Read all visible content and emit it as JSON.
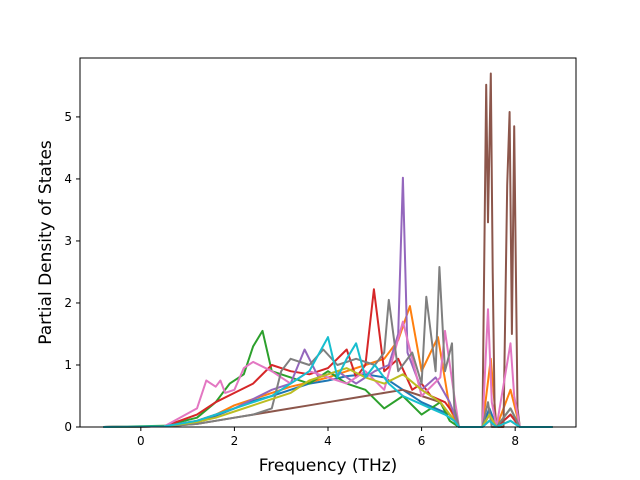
{
  "chart_data": {
    "type": "line",
    "xlabel": "Frequency (THz)",
    "ylabel": "Partial Density of States",
    "xlim": [
      -1.3,
      9.3
    ],
    "ylim": [
      0,
      5.95
    ],
    "xticks": [
      0,
      2,
      4,
      6,
      8
    ],
    "yticks": [
      0,
      1,
      2,
      3,
      4,
      5
    ],
    "grid": false,
    "series": [
      {
        "color": "#1f77b4",
        "x": [
          -0.8,
          0.5,
          1.2,
          1.6,
          2.0,
          2.4,
          2.8,
          3.2,
          3.6,
          4.0,
          4.4,
          4.8,
          5.2,
          5.6,
          6.0,
          6.3,
          6.6,
          6.8,
          7.3,
          7.45,
          7.6,
          7.9,
          8.1,
          8.8
        ],
        "y": [
          0,
          0.01,
          0.08,
          0.18,
          0.3,
          0.42,
          0.5,
          0.6,
          0.7,
          0.75,
          0.82,
          0.85,
          0.8,
          0.6,
          0.4,
          0.3,
          0.2,
          0,
          0,
          0.3,
          0,
          0.2,
          0,
          0
        ]
      },
      {
        "color": "#ff7f0e",
        "x": [
          -0.8,
          0.5,
          1.2,
          1.6,
          2.0,
          2.4,
          2.8,
          3.2,
          3.6,
          4.0,
          4.4,
          4.8,
          5.2,
          5.5,
          5.75,
          6.0,
          6.35,
          6.6,
          6.8,
          7.3,
          7.48,
          7.6,
          7.9,
          8.1,
          8.8
        ],
        "y": [
          0,
          0.01,
          0.1,
          0.2,
          0.35,
          0.45,
          0.55,
          0.65,
          0.72,
          0.8,
          0.9,
          1.0,
          1.1,
          1.4,
          1.95,
          0.9,
          1.45,
          0.3,
          0,
          0,
          1.1,
          0,
          0.6,
          0,
          0
        ]
      },
      {
        "color": "#2ca02c",
        "x": [
          -0.8,
          0.5,
          1.2,
          1.6,
          1.9,
          2.2,
          2.4,
          2.6,
          2.8,
          3.2,
          3.6,
          4.0,
          4.4,
          4.8,
          5.2,
          5.6,
          6.0,
          6.4,
          6.6,
          6.8,
          7.3,
          7.45,
          7.6,
          7.9,
          8.1,
          8.8
        ],
        "y": [
          0,
          0.02,
          0.15,
          0.4,
          0.7,
          0.85,
          1.3,
          1.55,
          0.9,
          0.8,
          0.7,
          0.9,
          0.7,
          0.6,
          0.3,
          0.5,
          0.2,
          0.4,
          0.1,
          0,
          0,
          0.2,
          0,
          0.3,
          0,
          0
        ]
      },
      {
        "color": "#d62728",
        "x": [
          -0.8,
          0.5,
          1.2,
          1.6,
          2.0,
          2.4,
          2.8,
          3.2,
          3.6,
          4.0,
          4.4,
          4.6,
          4.8,
          4.98,
          5.2,
          5.5,
          5.8,
          6.0,
          6.2,
          6.5,
          6.7,
          6.8,
          7.3,
          7.45,
          7.6,
          7.9,
          8.1,
          8.8
        ],
        "y": [
          0,
          0.01,
          0.2,
          0.4,
          0.55,
          0.7,
          1.0,
          0.9,
          0.85,
          0.95,
          1.25,
          0.8,
          1.0,
          2.22,
          0.9,
          1.1,
          0.6,
          0.7,
          0.5,
          0.4,
          0.2,
          0,
          0,
          0.1,
          0,
          0.2,
          0,
          0
        ]
      },
      {
        "color": "#9467bd",
        "x": [
          -0.8,
          0.5,
          1.2,
          1.6,
          2.0,
          2.4,
          2.8,
          3.2,
          3.5,
          3.8,
          4.2,
          4.6,
          5.0,
          5.3,
          5.5,
          5.6,
          5.7,
          6.0,
          6.3,
          6.6,
          6.8,
          7.3,
          7.45,
          7.6,
          7.9,
          8.1,
          8.8
        ],
        "y": [
          0,
          0.01,
          0.1,
          0.2,
          0.3,
          0.45,
          0.6,
          0.7,
          1.25,
          0.8,
          0.9,
          0.7,
          0.9,
          1.0,
          1.5,
          4.02,
          1.2,
          0.6,
          0.8,
          0.4,
          0,
          0,
          0.2,
          0,
          0.1,
          0,
          0
        ]
      },
      {
        "color": "#8c564b",
        "x": [
          -0.8,
          0.5,
          1.2,
          1.6,
          2.0,
          2.4,
          2.8,
          3.2,
          3.6,
          4.0,
          4.4,
          4.8,
          5.2,
          5.6,
          6.0,
          6.4,
          6.6,
          6.8,
          7.3,
          7.38,
          7.42,
          7.48,
          7.52,
          7.56,
          7.6,
          7.75,
          7.83,
          7.88,
          7.93,
          7.98,
          8.05,
          8.1,
          8.8
        ],
        "y": [
          0,
          0.01,
          0.05,
          0.1,
          0.15,
          0.2,
          0.25,
          0.3,
          0.35,
          0.4,
          0.45,
          0.5,
          0.55,
          0.6,
          0.5,
          0.4,
          0.2,
          0,
          0,
          5.52,
          3.3,
          5.7,
          2.5,
          0.3,
          0,
          0,
          3.9,
          5.08,
          1.5,
          4.85,
          0.3,
          0,
          0
        ]
      },
      {
        "color": "#e377c2",
        "x": [
          -0.8,
          0.5,
          1.2,
          1.4,
          1.6,
          1.7,
          1.8,
          2.0,
          2.2,
          2.4,
          2.8,
          3.2,
          3.6,
          4.0,
          4.4,
          4.8,
          5.2,
          5.6,
          6.0,
          6.4,
          6.5,
          6.7,
          6.8,
          7.3,
          7.42,
          7.5,
          7.6,
          7.9,
          7.98,
          8.1,
          8.8
        ],
        "y": [
          0,
          0.01,
          0.3,
          0.75,
          0.65,
          0.75,
          0.55,
          0.6,
          0.95,
          1.05,
          0.9,
          0.7,
          0.9,
          0.8,
          0.7,
          0.9,
          0.6,
          1.7,
          0.5,
          0.8,
          1.55,
          0.5,
          0,
          0,
          1.9,
          0.4,
          0,
          1.35,
          0.5,
          0,
          0
        ]
      },
      {
        "color": "#7f7f7f",
        "x": [
          -0.8,
          0.5,
          1.2,
          1.6,
          2.0,
          2.4,
          2.8,
          3.0,
          3.2,
          3.6,
          3.9,
          4.2,
          4.6,
          5.0,
          5.2,
          5.3,
          5.5,
          5.8,
          6.0,
          6.1,
          6.3,
          6.38,
          6.5,
          6.65,
          6.7,
          6.8,
          7.3,
          7.42,
          7.5,
          7.6,
          7.9,
          8.1,
          8.8
        ],
        "y": [
          0,
          0.01,
          0.05,
          0.1,
          0.15,
          0.2,
          0.3,
          0.9,
          1.1,
          1.0,
          1.25,
          1.0,
          1.1,
          1.0,
          1.2,
          2.05,
          0.9,
          1.2,
          0.7,
          2.1,
          0.9,
          2.58,
          0.9,
          1.35,
          0.3,
          0,
          0,
          0.4,
          0,
          0,
          0.3,
          0,
          0
        ]
      },
      {
        "color": "#bcbd22",
        "x": [
          -0.8,
          0.5,
          1.2,
          1.6,
          2.0,
          2.4,
          2.8,
          3.2,
          3.6,
          4.0,
          4.4,
          4.8,
          5.2,
          5.6,
          6.0,
          6.4,
          6.6,
          6.8,
          7.3,
          7.45,
          7.6,
          7.9,
          8.1,
          8.8
        ],
        "y": [
          0,
          0.01,
          0.08,
          0.15,
          0.25,
          0.35,
          0.45,
          0.55,
          0.75,
          0.85,
          0.95,
          0.8,
          0.7,
          0.85,
          0.6,
          0.4,
          0.2,
          0,
          0,
          0.2,
          0,
          0.1,
          0,
          0
        ]
      },
      {
        "color": "#17becf",
        "x": [
          -0.8,
          0.5,
          1.2,
          1.6,
          2.0,
          2.4,
          2.8,
          3.2,
          3.6,
          4.0,
          4.2,
          4.4,
          4.6,
          4.8,
          5.0,
          5.3,
          5.6,
          5.9,
          6.2,
          6.5,
          6.7,
          6.8,
          7.3,
          7.45,
          7.6,
          7.9,
          8.1,
          8.8
        ],
        "y": [
          0,
          0.01,
          0.1,
          0.2,
          0.3,
          0.4,
          0.5,
          0.7,
          0.9,
          1.45,
          0.8,
          1.1,
          1.35,
          0.8,
          1.0,
          0.7,
          0.5,
          0.4,
          0.3,
          0.2,
          0.1,
          0,
          0,
          0.1,
          0,
          0.1,
          0,
          0
        ]
      }
    ]
  }
}
